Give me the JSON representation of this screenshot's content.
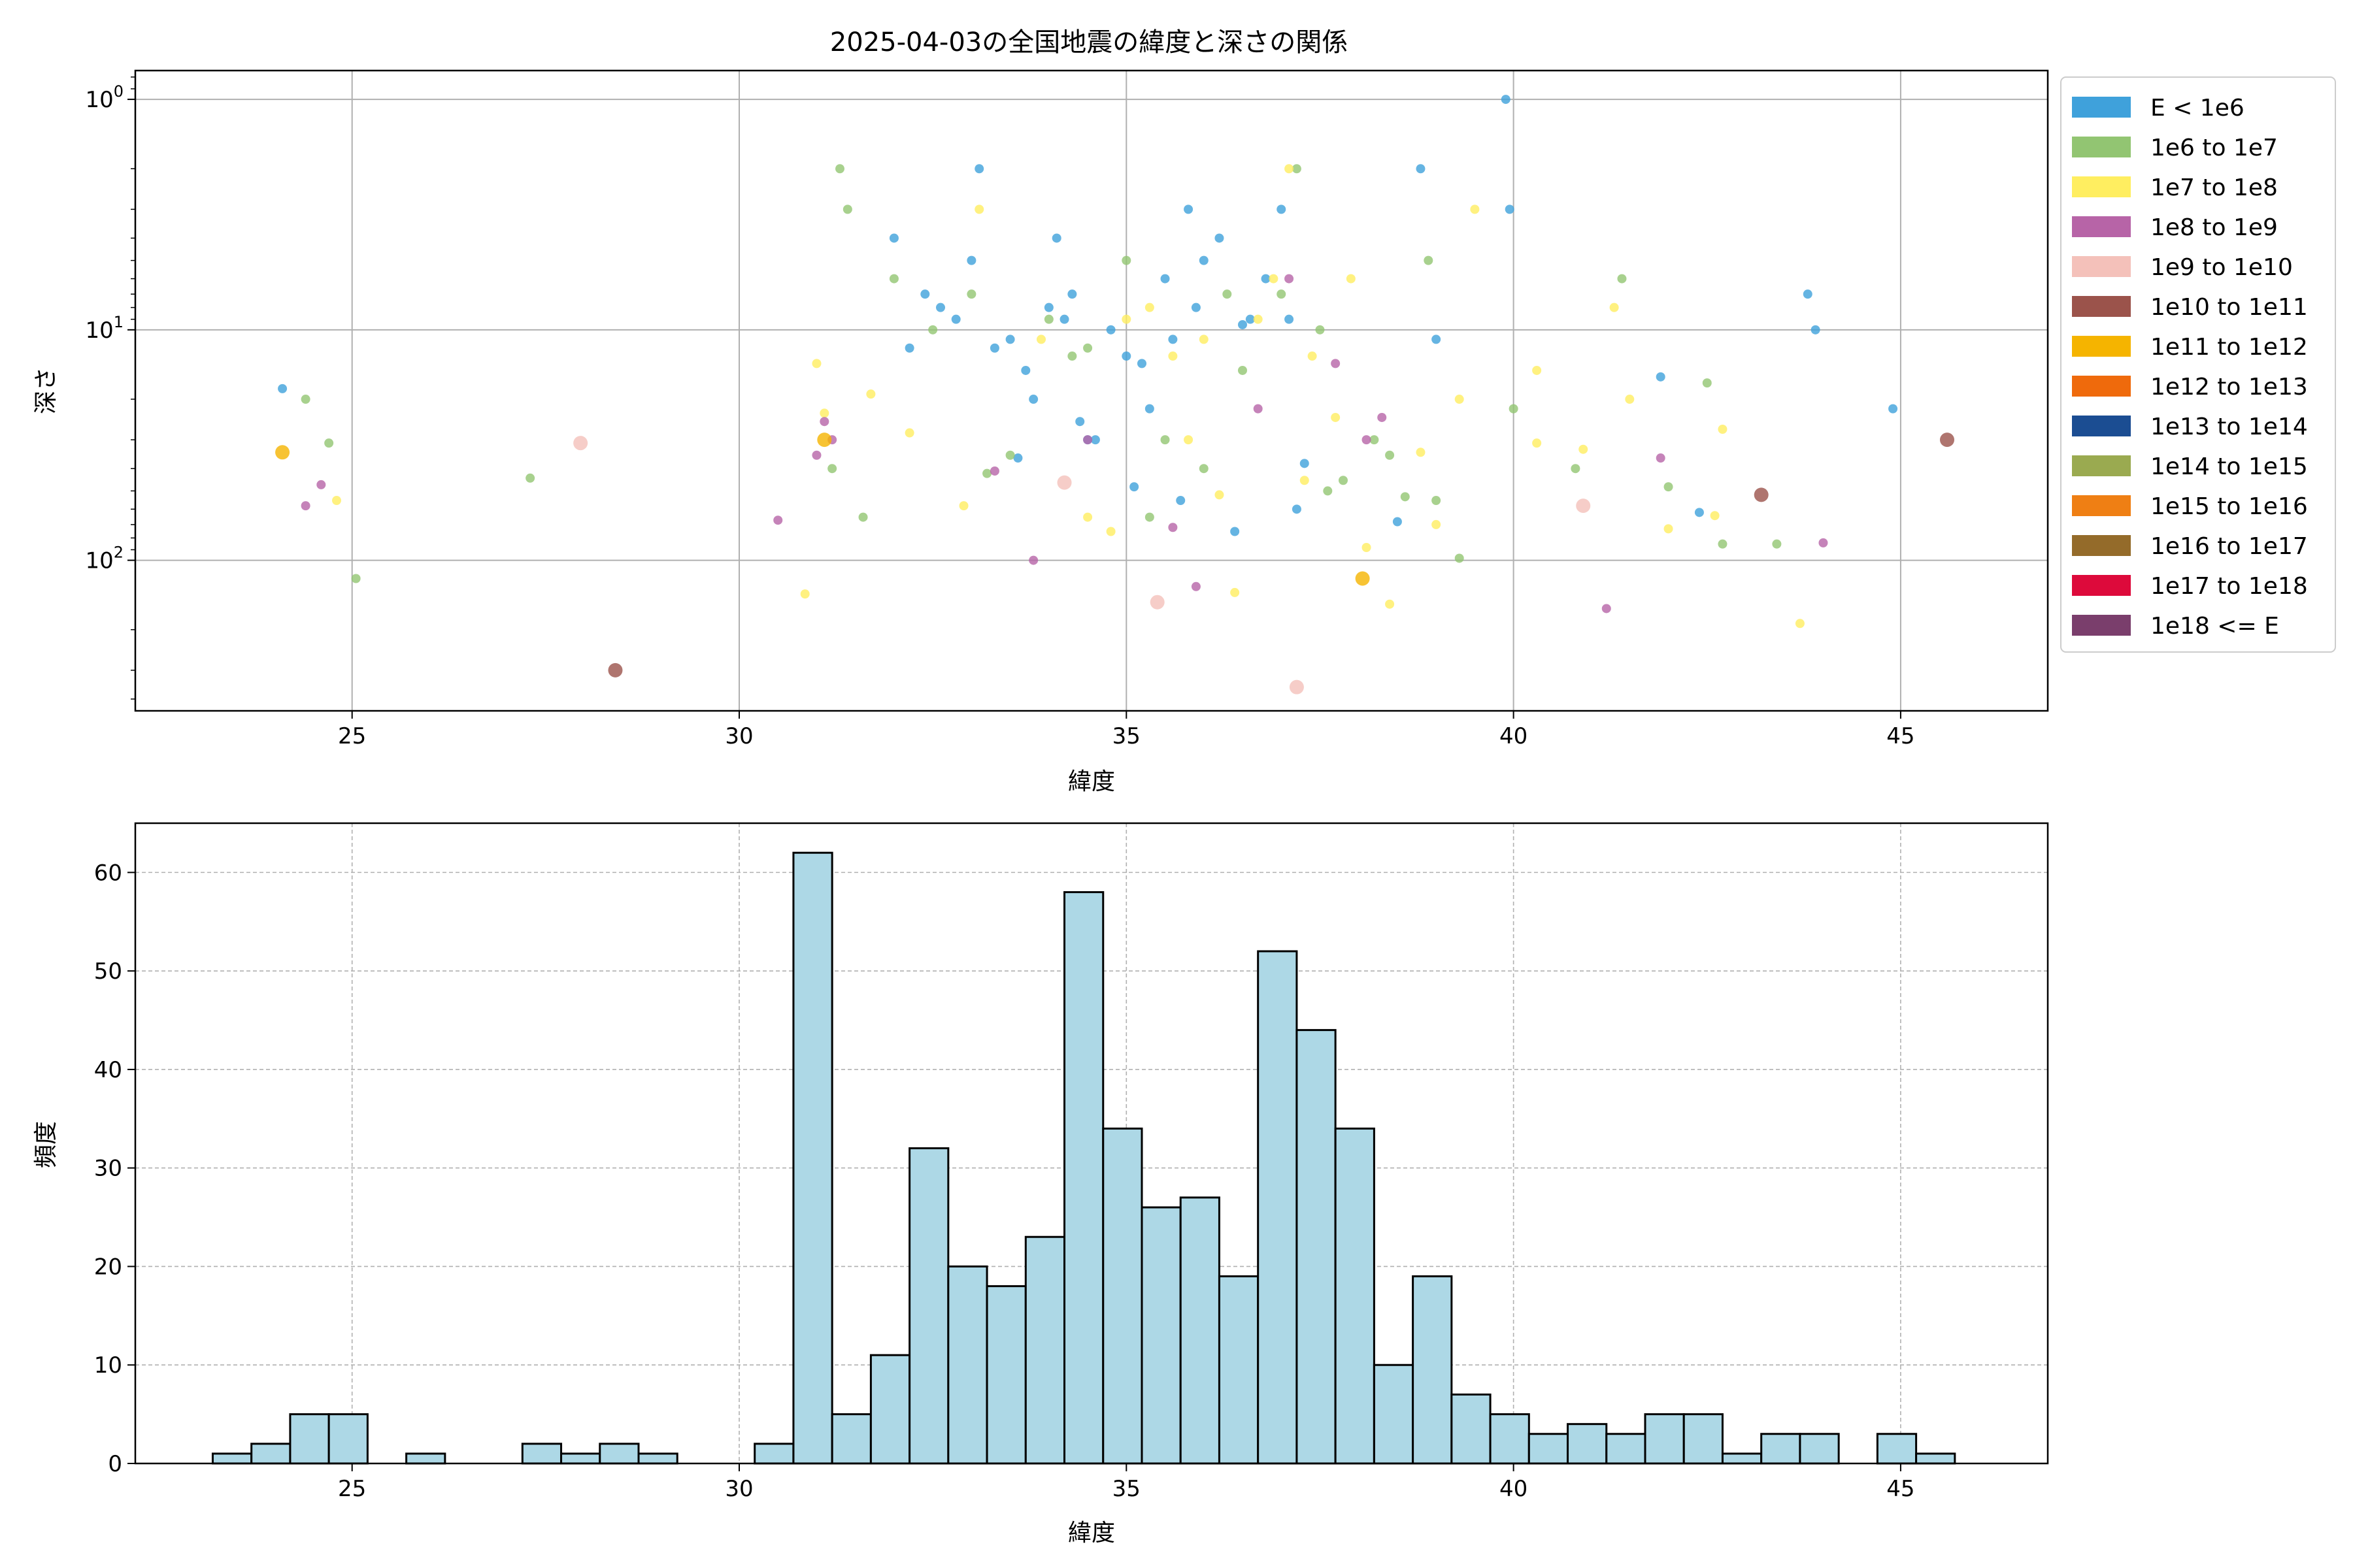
{
  "figure_title": "2025-04-03の全国地震の緯度と深さの関係",
  "legend_entries": [
    {
      "label": "E < 1e6",
      "color": "#3fa1db"
    },
    {
      "label": "1e6 to 1e7",
      "color": "#92c572"
    },
    {
      "label": "1e7 to 1e8",
      "color": "#ffee60"
    },
    {
      "label": "1e8 to 1e9",
      "color": "#b764a7"
    },
    {
      "label": "1e9 to 1e10",
      "color": "#f4c1ba"
    },
    {
      "label": "1e10 to 1e11",
      "color": "#9b534b"
    },
    {
      "label": "1e11 to 1e12",
      "color": "#f5b400"
    },
    {
      "label": "1e12 to 1e13",
      "color": "#ef6a0c"
    },
    {
      "label": "1e13 to 1e14",
      "color": "#1b4d92"
    },
    {
      "label": "1e14 to 1e15",
      "color": "#9aaa50"
    },
    {
      "label": "1e15 to 1e16",
      "color": "#ef7f14"
    },
    {
      "label": "1e16 to 1e17",
      "color": "#946b2a"
    },
    {
      "label": "1e17 to 1e18",
      "color": "#dd0a3b"
    },
    {
      "label": "1e18 <= E",
      "color": "#7a3e6c"
    }
  ],
  "chart_data": [
    {
      "type": "scatter",
      "xlabel": "緯度",
      "ylabel": "深さ",
      "xlim": [
        22.2,
        46.9
      ],
      "ylim": [
        450,
        0.75
      ],
      "y_scale": "log",
      "y_inverted": true,
      "grid": true,
      "legend_position": "outside-right-top",
      "xticks": [
        "25",
        "30",
        "35",
        "40",
        "45"
      ],
      "yticks": [
        "10^0",
        "10^1",
        "10^2"
      ],
      "series": [
        {
          "name": "E < 1e6",
          "points": [
            [
              24.1,
              18
            ],
            [
              32,
              4
            ],
            [
              32.4,
              7
            ],
            [
              32.6,
              8
            ],
            [
              32.8,
              9
            ],
            [
              33,
              5
            ],
            [
              33.1,
              2
            ],
            [
              33.3,
              12
            ],
            [
              33.5,
              11
            ],
            [
              33.7,
              15
            ],
            [
              33.8,
              20
            ],
            [
              34,
              8
            ],
            [
              34.1,
              4
            ],
            [
              34.2,
              9
            ],
            [
              34.3,
              7
            ],
            [
              34.4,
              25
            ],
            [
              34.6,
              30
            ],
            [
              34.8,
              10
            ],
            [
              35,
              13
            ],
            [
              35.2,
              14
            ],
            [
              35.3,
              22
            ],
            [
              35.5,
              6
            ],
            [
              35.6,
              11
            ],
            [
              35.8,
              3
            ],
            [
              35.9,
              8
            ],
            [
              36,
              5
            ],
            [
              36.2,
              4
            ],
            [
              36.4,
              75
            ],
            [
              36.6,
              9
            ],
            [
              36.8,
              6
            ],
            [
              37,
              3
            ],
            [
              37.1,
              9
            ],
            [
              37.3,
              38
            ],
            [
              38.5,
              68
            ],
            [
              38.8,
              2
            ],
            [
              39,
              11
            ],
            [
              39.9,
              1
            ],
            [
              39.95,
              3
            ],
            [
              41.9,
              16
            ],
            [
              42.4,
              62
            ],
            [
              43.8,
              7
            ],
            [
              43.9,
              10
            ],
            [
              44.9,
              22
            ],
            [
              32.2,
              12
            ],
            [
              33.6,
              36
            ],
            [
              34.5,
              30
            ],
            [
              35.1,
              48
            ],
            [
              35.7,
              55
            ],
            [
              36.5,
              9.5
            ],
            [
              37.2,
              60
            ]
          ]
        },
        {
          "name": "1e6 to 1e7",
          "points": [
            [
              24.4,
              20
            ],
            [
              24.7,
              31
            ],
            [
              25.05,
              120
            ],
            [
              27.3,
              44
            ],
            [
              31.3,
              2
            ],
            [
              31.4,
              3
            ],
            [
              31.6,
              65
            ],
            [
              32,
              6
            ],
            [
              32.5,
              10
            ],
            [
              33,
              7
            ],
            [
              33.5,
              35
            ],
            [
              34,
              9
            ],
            [
              34.5,
              12
            ],
            [
              35,
              5
            ],
            [
              35.5,
              30
            ],
            [
              36,
              40
            ],
            [
              36.5,
              15
            ],
            [
              37,
              7
            ],
            [
              37.2,
              2
            ],
            [
              37.5,
              10
            ],
            [
              37.8,
              45
            ],
            [
              38.2,
              30
            ],
            [
              38.6,
              53
            ],
            [
              38.9,
              5
            ],
            [
              39,
              55
            ],
            [
              39.3,
              98
            ],
            [
              40,
              22
            ],
            [
              40.8,
              40
            ],
            [
              41.4,
              6
            ],
            [
              42,
              48
            ],
            [
              42.5,
              17
            ],
            [
              42.7,
              85
            ],
            [
              43.4,
              85
            ],
            [
              31.2,
              40
            ],
            [
              33.2,
              42
            ],
            [
              34.3,
              13
            ],
            [
              35.3,
              65
            ],
            [
              36.3,
              7
            ],
            [
              37.6,
              50
            ],
            [
              38.4,
              35
            ]
          ]
        },
        {
          "name": "1e7 to 1e8",
          "points": [
            [
              24.8,
              55
            ],
            [
              30.85,
              140
            ],
            [
              31,
              14
            ],
            [
              31.1,
              23
            ],
            [
              31.7,
              19
            ],
            [
              32.2,
              28
            ],
            [
              32.9,
              58
            ],
            [
              33.1,
              3
            ],
            [
              33.9,
              11
            ],
            [
              34.5,
              65
            ],
            [
              35,
              9
            ],
            [
              35.3,
              8
            ],
            [
              35.6,
              13
            ],
            [
              36,
              11
            ],
            [
              36.2,
              52
            ],
            [
              36.4,
              138
            ],
            [
              36.7,
              9
            ],
            [
              36.9,
              6
            ],
            [
              37.1,
              2
            ],
            [
              37.4,
              13
            ],
            [
              37.7,
              24
            ],
            [
              37.9,
              6
            ],
            [
              38.1,
              88
            ],
            [
              38.4,
              155
            ],
            [
              38.8,
              34
            ],
            [
              39,
              70
            ],
            [
              39.3,
              20
            ],
            [
              39.5,
              3
            ],
            [
              40.3,
              15
            ],
            [
              40.3,
              31
            ],
            [
              40.9,
              33
            ],
            [
              41.3,
              8
            ],
            [
              41.5,
              20
            ],
            [
              42,
              73
            ],
            [
              42.6,
              64
            ],
            [
              42.7,
              27
            ],
            [
              43.7,
              188
            ],
            [
              34.8,
              75
            ],
            [
              35.8,
              30
            ],
            [
              37.3,
              45
            ]
          ]
        },
        {
          "name": "1e8 to 1e9",
          "points": [
            [
              24.4,
              58
            ],
            [
              24.6,
              47
            ],
            [
              31,
              35
            ],
            [
              31.1,
              25
            ],
            [
              31.2,
              30
            ],
            [
              30.5,
              67
            ],
            [
              33.3,
              41
            ],
            [
              33.8,
              100
            ],
            [
              34.5,
              30
            ],
            [
              35.6,
              72
            ],
            [
              35.9,
              130
            ],
            [
              37.1,
              6
            ],
            [
              37.7,
              14
            ],
            [
              38.1,
              30
            ],
            [
              38.3,
              24
            ],
            [
              41.2,
              162
            ],
            [
              41.9,
              36
            ],
            [
              44,
              84
            ],
            [
              36.7,
              22
            ]
          ]
        },
        {
          "name": "1e9 to 1e10",
          "points": [
            [
              27.95,
              31
            ],
            [
              34.2,
              46
            ],
            [
              35.4,
              152
            ],
            [
              37.2,
              355
            ],
            [
              40.9,
              58
            ]
          ]
        },
        {
          "name": "1e10 to 1e11",
          "points": [
            [
              28.4,
              300
            ],
            [
              43.2,
              52
            ],
            [
              45.6,
              30
            ]
          ]
        },
        {
          "name": "1e11 to 1e12",
          "points": [
            [
              24.1,
              34
            ],
            [
              31.1,
              30
            ],
            [
              38.05,
              120
            ]
          ]
        }
      ]
    },
    {
      "type": "bar",
      "subtype": "histogram",
      "xlabel": "緯度",
      "ylabel": "頻度",
      "xlim": [
        22.2,
        46.9
      ],
      "ylim": [
        0,
        65
      ],
      "grid": true,
      "xticks": [
        "25",
        "30",
        "35",
        "40",
        "45"
      ],
      "yticks": [
        "0",
        "10",
        "20",
        "30",
        "40",
        "50",
        "60"
      ],
      "bin_start": 23.2,
      "bin_width": 0.5,
      "counts": [
        1,
        2,
        5,
        5,
        0,
        1,
        0,
        0,
        2,
        1,
        2,
        1,
        0,
        0,
        2,
        62,
        5,
        11,
        32,
        20,
        18,
        23,
        58,
        34,
        26,
        27,
        19,
        52,
        44,
        34,
        10,
        19,
        7,
        5,
        3,
        4,
        3,
        5,
        5,
        1,
        3,
        3,
        0,
        3,
        1
      ]
    }
  ]
}
